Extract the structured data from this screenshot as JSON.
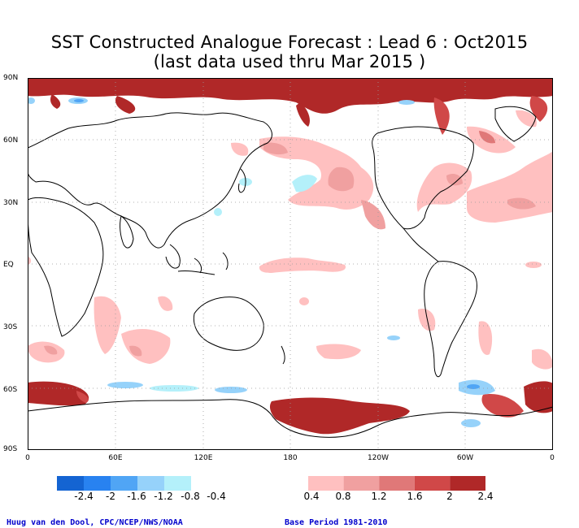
{
  "title": {
    "line1": "SST Constructed Analogue Forecast : Lead 6 : Oct2015",
    "line2": "(last data used thru Mar 2015 )"
  },
  "map": {
    "lat_labels": [
      "90N",
      "60N",
      "30N",
      "EQ",
      "30S",
      "60S",
      "90S"
    ],
    "lon_labels": [
      "0",
      "60E",
      "120E",
      "180",
      "120W",
      "60W",
      "0"
    ],
    "grid": "dotted"
  },
  "colorbar": {
    "negative_colors": [
      "#1464d2",
      "#2882f0",
      "#50a5f5",
      "#96d2fa",
      "#b4f0fa"
    ],
    "positive_colors": [
      "#ffc0c0",
      "#f0a0a0",
      "#e07878",
      "#d04848",
      "#b02828"
    ],
    "labels": [
      "-2.4",
      "-2",
      "-1.6",
      "-1.2",
      "-0.8",
      "-0.4",
      "0.4",
      "0.8",
      "1.2",
      "1.6",
      "2",
      "2.4"
    ]
  },
  "footer": {
    "credit": "Huug van den Dool, CPC/NCEP/NWS/NOAA",
    "base_period": "Base Period 1981-2010"
  }
}
